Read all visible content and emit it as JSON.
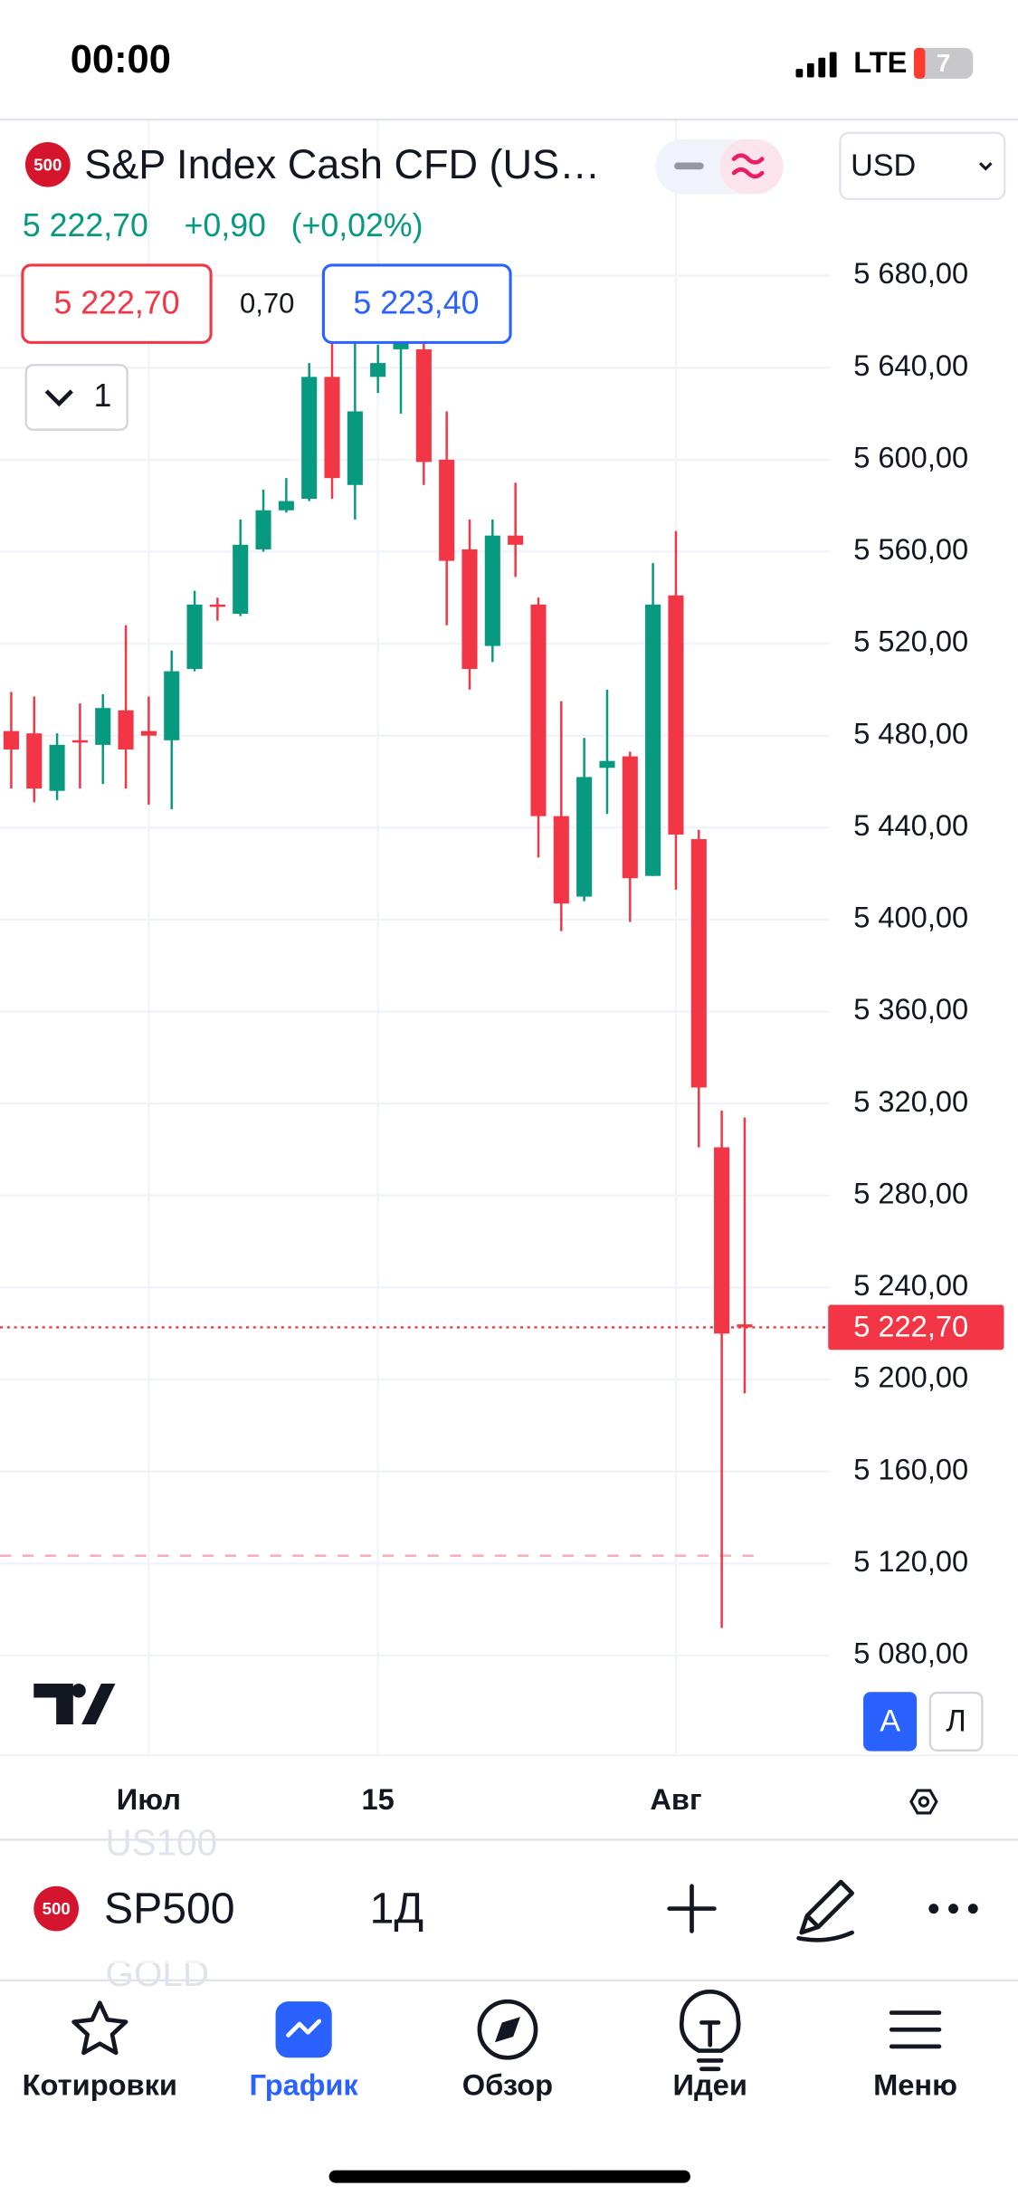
{
  "status_bar": {
    "time": "00:00",
    "network": "LTE",
    "battery": "7"
  },
  "header": {
    "badge": "500",
    "symbol_name": "S&P Index Cash CFD (US…",
    "currency": "USD",
    "price": "5 222,70",
    "change": "+0,90",
    "change_percent": "(+0,02%)",
    "bid": "5 222,70",
    "spread": "0,70",
    "ask": "5 223,40",
    "collapse_count": "1"
  },
  "chart_data": {
    "type": "candlestick",
    "categories": [
      null,
      null,
      null,
      null,
      null,
      null,
      "Июл",
      null,
      null,
      null,
      null,
      null,
      null,
      null,
      null,
      null,
      "15",
      null,
      null,
      null,
      null,
      null,
      null,
      null,
      null,
      null,
      null,
      null,
      null,
      "Авг",
      null,
      null,
      null
    ],
    "open": [
      5482,
      5481,
      5456,
      5478,
      5476,
      5491,
      5482,
      5478,
      5509,
      5537,
      5533,
      5561,
      5578,
      5583,
      5636,
      5589,
      5636,
      5648,
      5648,
      5600,
      5561,
      5519,
      5567,
      5537,
      5445,
      5410,
      5466,
      5471,
      5419,
      5541,
      5435,
      5301,
      5224
    ],
    "high": [
      5499,
      5497,
      5481,
      5494,
      5498,
      5528,
      5497,
      5517,
      5543,
      5540,
      5574,
      5587,
      5592,
      5642,
      5652,
      5653,
      5650,
      5655,
      5653,
      5621,
      5574,
      5574,
      5590,
      5540,
      5495,
      5479,
      5500,
      5473,
      5555,
      5569,
      5439,
      5317,
      5314
    ],
    "low": [
      5457,
      5451,
      5452,
      5457,
      5459,
      5457,
      5450,
      5448,
      5508,
      5530,
      5532,
      5560,
      5577,
      5582,
      5583,
      5574,
      5629,
      5620,
      5589,
      5528,
      5500,
      5512,
      5549,
      5427,
      5395,
      5408,
      5446,
      5399,
      5419,
      5413,
      5301,
      5092,
      5194
    ],
    "close": [
      5474,
      5457,
      5476,
      5477,
      5492,
      5474,
      5480,
      5508,
      5537,
      5536,
      5563,
      5578,
      5582,
      5636,
      5592,
      5621,
      5642,
      5652,
      5599,
      5556,
      5509,
      5567,
      5563,
      5445,
      5407,
      5462,
      5469,
      5418,
      5537,
      5437,
      5327,
      5220,
      5222.7
    ],
    "up_color": "#089981",
    "down_color": "#f23645",
    "ylim": [
      5036.6,
      5747.9
    ],
    "yticks": [
      {
        "value": 5080,
        "label": "5 080,00"
      },
      {
        "value": 5120,
        "label": "5 120,00"
      },
      {
        "value": 5160,
        "label": "5 160,00"
      },
      {
        "value": 5200,
        "label": "5 200,00"
      },
      {
        "value": 5240,
        "label": "5 240,00"
      },
      {
        "value": 5280,
        "label": "5 280,00"
      },
      {
        "value": 5320,
        "label": "5 320,00"
      },
      {
        "value": 5360,
        "label": "5 360,00"
      },
      {
        "value": 5400,
        "label": "5 400,00"
      },
      {
        "value": 5440,
        "label": "5 440,00"
      },
      {
        "value": 5480,
        "label": "5 480,00"
      },
      {
        "value": 5520,
        "label": "5 520,00"
      },
      {
        "value": 5560,
        "label": "5 560,00"
      },
      {
        "value": 5600,
        "label": "5 600,00"
      },
      {
        "value": 5640,
        "label": "5 640,00"
      },
      {
        "value": 5680,
        "label": "5 680,00"
      }
    ],
    "last_price": {
      "value": 5222.7,
      "label": "5 222,70"
    },
    "reference_line": 5123.4,
    "grid": true
  },
  "chart_controls": {
    "auto": "A",
    "log": "Л"
  },
  "watermark_list": [
    "US100",
    "GOLD"
  ],
  "toolbar": {
    "badge": "500",
    "symbol": "SP500",
    "interval": "1Д"
  },
  "nav": [
    "Котировки",
    "График",
    "Обзор",
    "Идеи",
    "Меню"
  ]
}
